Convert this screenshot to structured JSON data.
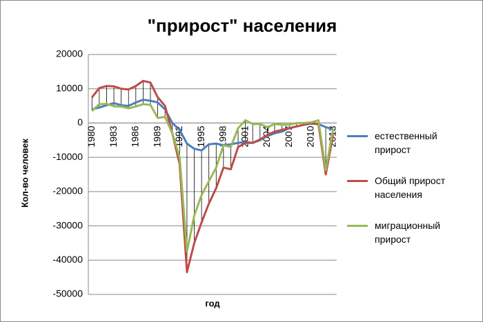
{
  "chart_data": {
    "type": "line",
    "title": "\"прирост\" населения",
    "y_label": "Кол-во человек",
    "x_label": "год",
    "categories": [
      "1980",
      null,
      null,
      "1983",
      null,
      null,
      "1986",
      null,
      null,
      "1989",
      null,
      null,
      "1992",
      null,
      null,
      "1995",
      null,
      null,
      "1998",
      null,
      null,
      "2001",
      null,
      null,
      "2004",
      null,
      null,
      "2007",
      null,
      null,
      "2010",
      null,
      null,
      "2013"
    ],
    "series": [
      {
        "name": "естественный прирост",
        "color": "#4a7ebb",
        "values": [
          4000,
          4500,
          5200,
          5800,
          5200,
          5000,
          6000,
          6800,
          6500,
          6000,
          4000,
          0,
          -2000,
          -6000,
          -7500,
          -8000,
          -6200,
          -6000,
          -6500,
          -6200,
          -5800,
          -5500,
          -5800,
          -5000,
          -3800,
          -3000,
          -2500,
          -1500,
          -1000,
          -500,
          -200,
          -300,
          -1200,
          -1800
        ]
      },
      {
        "name": "Общий прирост населения",
        "color": "#be4b48",
        "values": [
          7500,
          10200,
          10800,
          10700,
          10000,
          9800,
          10800,
          12300,
          11800,
          7500,
          5000,
          -3000,
          -12000,
          -43500,
          -35000,
          -29000,
          -23500,
          -19000,
          -13000,
          -13500,
          -7000,
          -5800,
          -5800,
          -4800,
          -3500,
          -2500,
          -2000,
          -1500,
          -1000,
          -500,
          0,
          -300,
          -15000,
          -3500
        ]
      },
      {
        "name": "миграционный прирост",
        "color": "#98b954",
        "values": [
          3500,
          5500,
          5600,
          4900,
          4800,
          4300,
          4800,
          5500,
          5300,
          1500,
          1800,
          -3000,
          -10000,
          -37500,
          -27000,
          -21000,
          -17000,
          -13000,
          -6500,
          -7000,
          -1500,
          800,
          -300,
          -300,
          -1200,
          -300,
          -500,
          -500,
          0,
          0,
          200,
          800,
          -13800,
          -1700
        ]
      }
    ],
    "ylim": [
      -50000,
      20000
    ],
    "yticks": [
      20000,
      10000,
      0,
      -10000,
      -20000,
      -30000,
      -40000,
      -50000
    ],
    "grid": true,
    "legend": "right"
  }
}
